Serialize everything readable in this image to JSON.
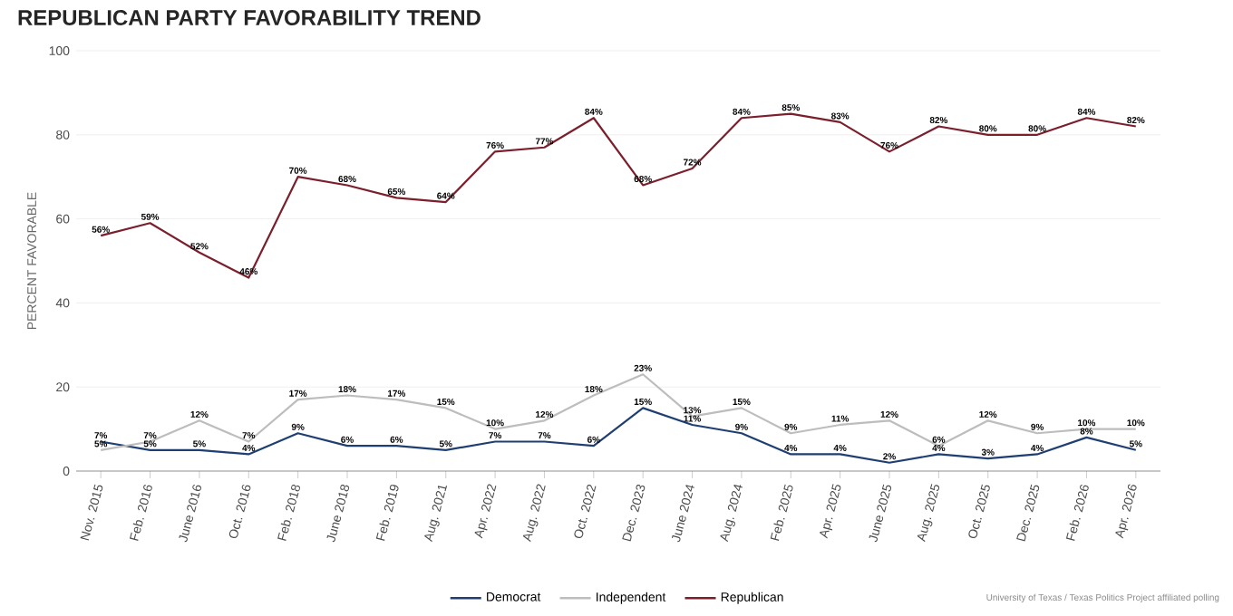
{
  "chart_data": {
    "type": "line",
    "title": "REPUBLICAN PARTY FAVORABILITY TREND",
    "ylabel": "PERCENT FAVORABLE",
    "categories": [
      "Nov. 2015",
      "Feb. 2016",
      "June 2016",
      "Oct. 2016",
      "Feb. 2018",
      "June 2018",
      "Feb. 2019",
      "Aug. 2021",
      "Apr. 2022",
      "Aug. 2022",
      "Oct. 2022",
      "Dec. 2023",
      "June 2024",
      "Aug. 2024",
      "Feb. 2025",
      "Apr. 2025",
      "June 2025",
      "Aug. 2025",
      "Oct. 2025",
      "Dec. 2025",
      "Feb. 2026",
      "Apr. 2026"
    ],
    "series": [
      {
        "name": "Democrat",
        "color": "#1f3f73",
        "values": [
          7,
          5,
          5,
          4,
          9,
          6,
          6,
          5,
          7,
          7,
          6,
          15,
          11,
          9,
          4,
          4,
          2,
          4,
          3,
          4,
          8,
          5
        ],
        "value_labels": [
          "7%",
          "5%",
          "5%",
          "4%",
          "9%",
          "6%",
          "6%",
          "5%",
          "7%",
          "7%",
          "6%",
          "15%",
          "11%",
          "9%",
          "4%",
          "4%",
          "2%",
          "4%",
          "3%",
          "4%",
          "8%",
          "5%"
        ]
      },
      {
        "name": "Independent",
        "color": "#bdbdbd",
        "values": [
          5,
          7,
          12,
          7,
          17,
          18,
          17,
          15,
          10,
          12,
          18,
          23,
          13,
          15,
          9,
          11,
          12,
          6,
          12,
          9,
          10,
          10
        ],
        "value_labels": [
          "5%",
          "7%",
          "12%",
          "7%",
          "17%",
          "18%",
          "17%",
          "15%",
          "10%",
          "12%",
          "18%",
          "23%",
          "13%",
          "15%",
          "9%",
          "11%",
          "12%",
          "6%",
          "12%",
          "9%",
          "10%",
          "10%"
        ]
      },
      {
        "name": "Republican",
        "color": "#7a1f2b",
        "values": [
          56,
          59,
          52,
          46,
          70,
          68,
          65,
          64,
          76,
          77,
          84,
          68,
          72,
          84,
          85,
          83,
          76,
          82,
          80,
          80,
          84,
          82
        ],
        "value_labels": [
          "56%",
          "59%",
          "52%",
          "46%",
          "70%",
          "68%",
          "65%",
          "64%",
          "76%",
          "77%",
          "84%",
          "68%",
          "72%",
          "84%",
          "85%",
          "83%",
          "76%",
          "82%",
          "80%",
          "80%",
          "84%",
          "82%"
        ]
      }
    ],
    "ylim": [
      0,
      100
    ],
    "yticks": [
      0,
      20,
      40,
      60,
      80,
      100
    ],
    "grid": "y",
    "legend": "bottom",
    "marker": "none",
    "line_style": "solid",
    "annotations": [
      "University of Texas / Texas Politics Project affiliated polling"
    ]
  }
}
